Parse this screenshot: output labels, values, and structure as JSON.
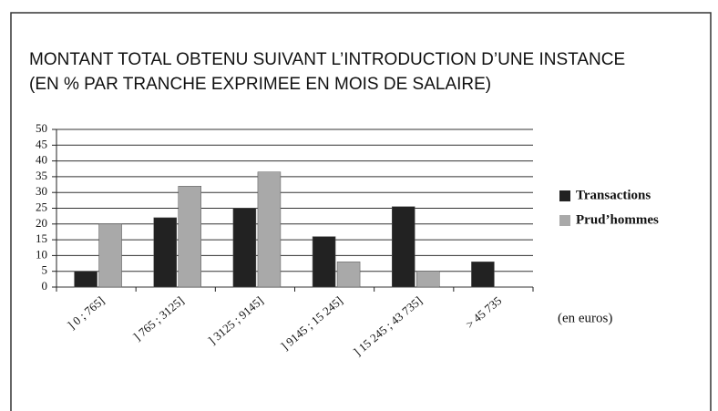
{
  "chart_data": {
    "type": "bar",
    "title": "MONTANT TOTAL OBTENU SUIVANT L’INTRODUCTION D’UNE INSTANCE",
    "subtitle": "(EN % PAR TRANCHE EXPRIMEE EN MOIS DE SALAIRE)",
    "annotation": "(en euros)",
    "categories": [
      "] 0 ; 765]",
      "] 765 ; 3125]",
      "] 3125 ; 9145]",
      "] 9145 ; 15 245]",
      "] 15 245 ; 43 735]",
      "> 45 735"
    ],
    "series": [
      {
        "name": "Transactions",
        "color": "#222222",
        "values": [
          5,
          22,
          25,
          16,
          25.5,
          8
        ]
      },
      {
        "name": "Prud’hommes",
        "color": "#a9a9a9",
        "values": [
          20,
          32,
          36.5,
          8,
          5,
          null
        ]
      }
    ],
    "ylim": [
      0,
      50
    ],
    "yticks": [
      0,
      5,
      10,
      15,
      20,
      25,
      30,
      35,
      40,
      45,
      50
    ],
    "grid": true,
    "legend": "right"
  }
}
